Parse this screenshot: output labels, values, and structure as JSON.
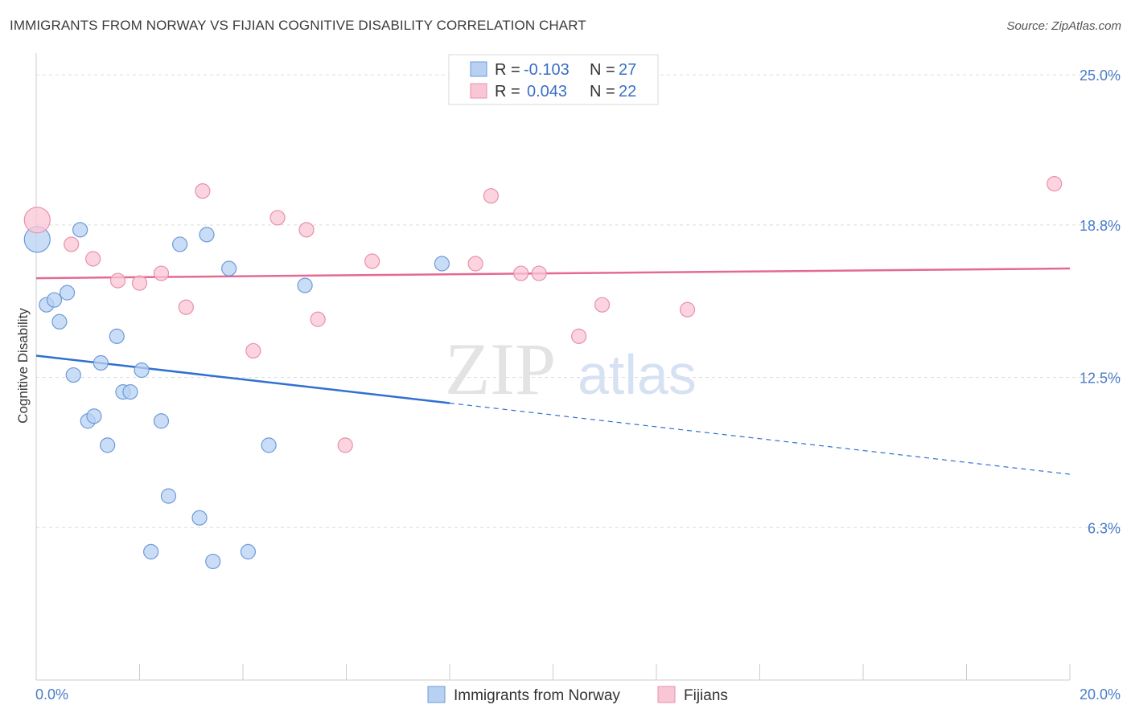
{
  "header": {
    "title": "IMMIGRANTS FROM NORWAY VS FIJIAN COGNITIVE DISABILITY CORRELATION CHART",
    "source": "Source: ZipAtlas.com"
  },
  "watermark": {
    "zip": "ZIP",
    "atlas": "atlas"
  },
  "colors": {
    "blue_fill": "#b8d1f3",
    "blue_stroke": "#6d9ad8",
    "blue_line": "#3070d0",
    "pink_fill": "#f9c6d5",
    "pink_stroke": "#e890aa",
    "pink_line": "#e46a93",
    "grid": "#dddddd",
    "tick_label": "#4a7cc7"
  },
  "legend": {
    "rows": [
      {
        "r_label": "R =",
        "r_value": "-0.103",
        "n_label": "N =",
        "n_value": "27"
      },
      {
        "r_label": "R =",
        "r_value": "0.043",
        "n_label": "N =",
        "n_value": "22"
      }
    ]
  },
  "chart_data": {
    "type": "scatter",
    "title": "IMMIGRANTS FROM NORWAY VS FIJIAN COGNITIVE DISABILITY CORRELATION CHART",
    "xlabel": "",
    "ylabel": "Cognitive Disability",
    "xlim": [
      0,
      20
    ],
    "ylim": [
      0,
      25.9
    ],
    "x_tick_labels": [
      {
        "value": 0,
        "label": "0.0%"
      },
      {
        "value": 20,
        "label": "20.0%"
      }
    ],
    "y_tick_labels": [
      {
        "value": 6.3,
        "label": "6.3%"
      },
      {
        "value": 12.5,
        "label": "12.5%"
      },
      {
        "value": 18.8,
        "label": "18.8%"
      },
      {
        "value": 25.0,
        "label": "25.0%"
      }
    ],
    "grid": true,
    "legend_position": "top-center",
    "series": [
      {
        "name": "Immigrants from Norway",
        "color": "#6d9ad8",
        "points": [
          {
            "x": 0.02,
            "y": 18.2,
            "big": true
          },
          {
            "x": 0.2,
            "y": 15.5
          },
          {
            "x": 0.35,
            "y": 15.7
          },
          {
            "x": 0.45,
            "y": 14.8
          },
          {
            "x": 0.6,
            "y": 16.0
          },
          {
            "x": 0.72,
            "y": 12.6
          },
          {
            "x": 0.85,
            "y": 18.6
          },
          {
            "x": 1.0,
            "y": 10.7
          },
          {
            "x": 1.12,
            "y": 10.9
          },
          {
            "x": 1.25,
            "y": 13.1
          },
          {
            "x": 1.38,
            "y": 9.7
          },
          {
            "x": 1.56,
            "y": 14.2
          },
          {
            "x": 1.68,
            "y": 11.9
          },
          {
            "x": 1.82,
            "y": 11.9
          },
          {
            "x": 2.04,
            "y": 12.8
          },
          {
            "x": 2.22,
            "y": 5.3
          },
          {
            "x": 2.42,
            "y": 10.7
          },
          {
            "x": 2.56,
            "y": 7.6
          },
          {
            "x": 2.78,
            "y": 18.0
          },
          {
            "x": 3.16,
            "y": 6.7
          },
          {
            "x": 3.3,
            "y": 18.4
          },
          {
            "x": 3.42,
            "y": 4.9
          },
          {
            "x": 3.73,
            "y": 17.0
          },
          {
            "x": 4.1,
            "y": 5.3
          },
          {
            "x": 4.5,
            "y": 9.7
          },
          {
            "x": 5.2,
            "y": 16.3
          },
          {
            "x": 7.85,
            "y": 17.2
          }
        ],
        "trend": {
          "x0": 0,
          "y0": 13.4,
          "x1": 20,
          "y1": 8.5,
          "solid_until_x": 8.0
        }
      },
      {
        "name": "Fijians",
        "color": "#e890aa",
        "points": [
          {
            "x": 0.02,
            "y": 19.0,
            "big": true
          },
          {
            "x": 0.68,
            "y": 18.0
          },
          {
            "x": 1.1,
            "y": 17.4
          },
          {
            "x": 1.58,
            "y": 16.5
          },
          {
            "x": 2.0,
            "y": 16.4
          },
          {
            "x": 2.42,
            "y": 16.8
          },
          {
            "x": 2.9,
            "y": 15.4
          },
          {
            "x": 3.22,
            "y": 20.2
          },
          {
            "x": 4.2,
            "y": 13.6
          },
          {
            "x": 4.67,
            "y": 19.1
          },
          {
            "x": 5.23,
            "y": 18.6
          },
          {
            "x": 5.45,
            "y": 14.9
          },
          {
            "x": 5.98,
            "y": 9.7
          },
          {
            "x": 6.5,
            "y": 17.3
          },
          {
            "x": 8.5,
            "y": 17.2
          },
          {
            "x": 8.8,
            "y": 20.0
          },
          {
            "x": 9.38,
            "y": 16.8
          },
          {
            "x": 9.73,
            "y": 16.8
          },
          {
            "x": 10.5,
            "y": 14.2
          },
          {
            "x": 10.95,
            "y": 15.5
          },
          {
            "x": 12.6,
            "y": 15.3
          },
          {
            "x": 19.7,
            "y": 20.5
          }
        ],
        "trend": {
          "x0": 0,
          "y0": 16.6,
          "x1": 20,
          "y1": 17.0,
          "solid_until_x": 20
        }
      }
    ]
  }
}
